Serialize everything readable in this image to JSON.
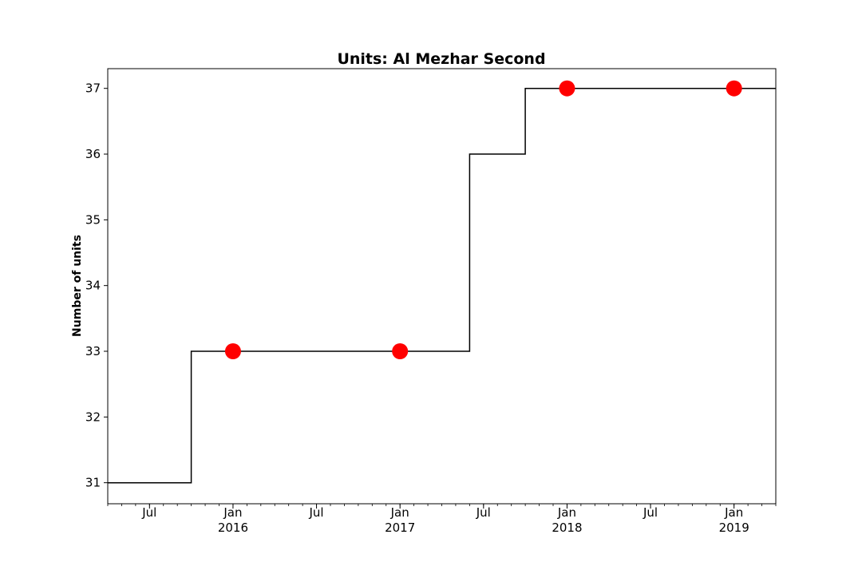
{
  "chart_data": {
    "type": "line",
    "title": "Units: Al Mezhar Second",
    "xlabel": "",
    "ylabel": "Number of units",
    "xlim": [
      "2015-04",
      "2019-04"
    ],
    "ylim": [
      30.68,
      37.3
    ],
    "y_ticks": [
      31,
      32,
      33,
      34,
      35,
      36,
      37
    ],
    "x_ticks": [
      {
        "date": "2015-07",
        "label": "Jul",
        "sublabel": ""
      },
      {
        "date": "2016-01",
        "label": "Jan",
        "sublabel": "2016"
      },
      {
        "date": "2016-07",
        "label": "Jul",
        "sublabel": ""
      },
      {
        "date": "2017-01",
        "label": "Jan",
        "sublabel": "2017"
      },
      {
        "date": "2017-07",
        "label": "Jul",
        "sublabel": ""
      },
      {
        "date": "2018-01",
        "label": "Jan",
        "sublabel": "2018"
      },
      {
        "date": "2018-07",
        "label": "Jul",
        "sublabel": ""
      },
      {
        "date": "2019-01",
        "label": "Jan",
        "sublabel": "2019"
      }
    ],
    "series": [
      {
        "style": "step",
        "color": "#000000",
        "x": [
          "2015-04",
          "2015-10",
          "2015-10",
          "2017-06",
          "2017-06",
          "2017-10",
          "2017-10",
          "2019-04"
        ],
        "y": [
          31,
          31,
          33,
          33,
          36,
          36,
          37,
          37
        ]
      },
      {
        "style": "markers",
        "color": "#ff0000",
        "x": [
          "2016-01",
          "2017-01",
          "2018-01",
          "2019-01"
        ],
        "y": [
          33,
          33,
          37,
          37
        ]
      }
    ],
    "grid": false,
    "legend": "none"
  }
}
